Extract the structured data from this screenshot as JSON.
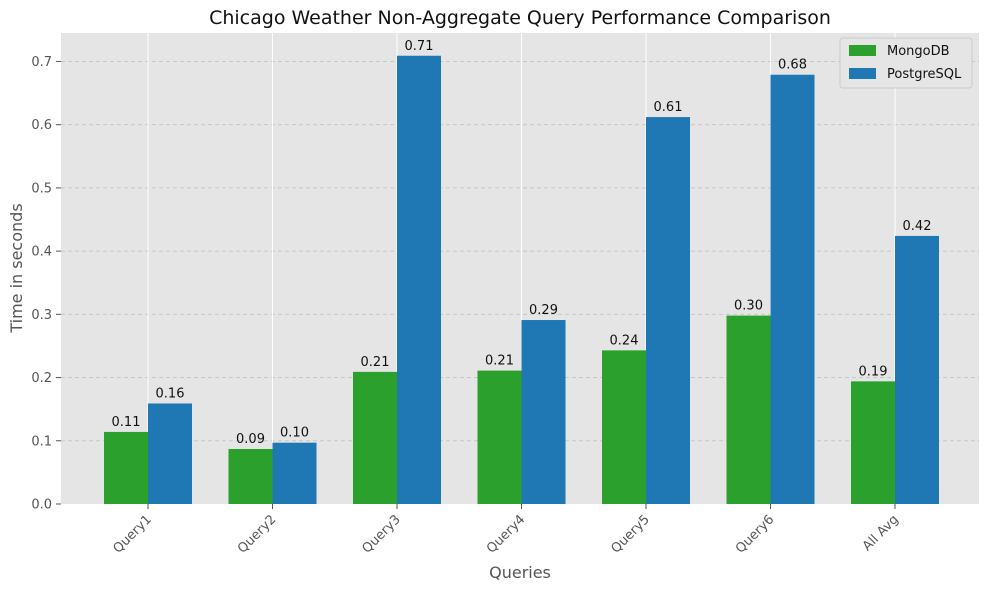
{
  "chart_data": {
    "type": "bar",
    "title": "Chicago Weather Non-Aggregate Query Performance Comparison",
    "xlabel": "Queries",
    "ylabel": "Time in seconds",
    "categories": [
      "Query1",
      "Query2",
      "Query3",
      "Query4",
      "Query5",
      "Query6",
      "All Avg"
    ],
    "series": [
      {
        "name": "MongoDB",
        "color": "#2ca02c",
        "values": [
          0.114,
          0.087,
          0.209,
          0.211,
          0.243,
          0.298,
          0.194
        ],
        "labels": [
          "0.11",
          "0.09",
          "0.21",
          "0.21",
          "0.24",
          "0.30",
          "0.19"
        ]
      },
      {
        "name": "PostgreSQL",
        "color": "#1f77b4",
        "values": [
          0.159,
          0.097,
          0.709,
          0.291,
          0.612,
          0.679,
          0.424
        ],
        "labels": [
          "0.16",
          "0.10",
          "0.71",
          "0.29",
          "0.61",
          "0.68",
          "0.42"
        ]
      }
    ],
    "ylim": [
      0,
      0.745
    ],
    "yticks": [
      0.0,
      0.1,
      0.2,
      0.3,
      0.4,
      0.5,
      0.6,
      0.7
    ],
    "ytick_labels": [
      "0.0",
      "0.1",
      "0.2",
      "0.3",
      "0.4",
      "0.5",
      "0.6",
      "0.7"
    ],
    "grid": true,
    "legend_position": "top-right",
    "background_color": "#e5e5e5",
    "xtick_rotation_deg": 45
  }
}
